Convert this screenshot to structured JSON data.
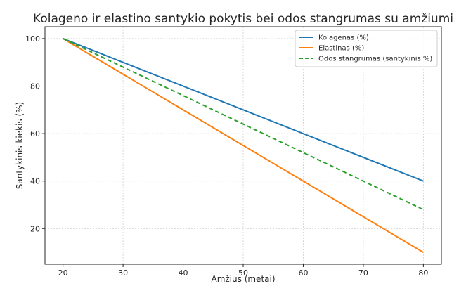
{
  "chart_data": {
    "type": "line",
    "title": "Kolageno ir elastino santykio pokytis bei odos stangrumas su amžiumi",
    "xlabel": "Amžius (metai)",
    "ylabel": "Santykinis kiekis (%)",
    "xlim": [
      17,
      83
    ],
    "ylim": [
      5,
      105
    ],
    "x_ticks": [
      20,
      30,
      40,
      50,
      60,
      70,
      80
    ],
    "y_ticks": [
      20,
      40,
      60,
      80,
      100
    ],
    "grid": true,
    "legend_position": "top-right",
    "x": [
      20,
      80
    ],
    "series": [
      {
        "name": "Kolagenas (%)",
        "values": [
          100,
          40
        ],
        "color": "#1f77b4",
        "dashed": false
      },
      {
        "name": "Elastinas (%)",
        "values": [
          100,
          10
        ],
        "color": "#ff7f0e",
        "dashed": false
      },
      {
        "name": "Odos stangrumas (santykinis %)",
        "values": [
          100,
          28
        ],
        "color": "#2ca02c",
        "dashed": true
      }
    ]
  }
}
